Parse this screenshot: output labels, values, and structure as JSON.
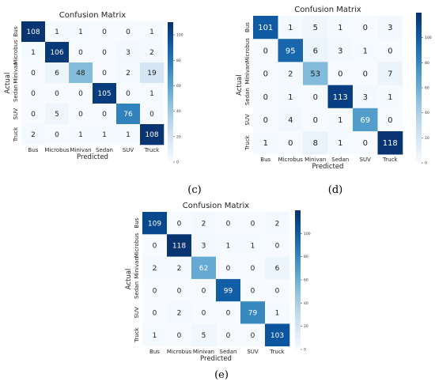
{
  "chart_data": [
    {
      "type": "heatmap",
      "title": "Confusion Matrix",
      "xlabel": "Predicted",
      "ylabel": "Actual",
      "x_categories": [
        "Bus",
        "Microbus",
        "Minivan",
        "Sedan",
        "SUV",
        "Truck"
      ],
      "y_categories": [
        "Bus",
        "Microbus",
        "Minivan",
        "Sedan",
        "SUV",
        "Truck"
      ],
      "values": [
        [
          108,
          1,
          1,
          0,
          0,
          1
        ],
        [
          1,
          106,
          0,
          0,
          3,
          2
        ],
        [
          0,
          6,
          48,
          0,
          2,
          19
        ],
        [
          0,
          0,
          0,
          105,
          0,
          1
        ],
        [
          0,
          5,
          0,
          0,
          76,
          0
        ],
        [
          2,
          0,
          1,
          1,
          1,
          108
        ]
      ],
      "colorbar_ticks": [
        0,
        20,
        40,
        60,
        80,
        100
      ],
      "colorbar_tick_labels": [
        "0",
        "20",
        "40",
        "60",
        "80",
        "100"
      ],
      "color_range": [
        0,
        110
      ],
      "colormap": "Blues",
      "panel_label": "(c)"
    },
    {
      "type": "heatmap",
      "title": "Confusion Matrix",
      "xlabel": "Predicted",
      "ylabel": "Actual",
      "x_categories": [
        "Bus",
        "Microbus",
        "Minivan",
        "Sedan",
        "SUV",
        "Truck"
      ],
      "y_categories": [
        "Bus",
        "Microbus",
        "Minivan",
        "Sedan",
        "SUV",
        "Truck"
      ],
      "values": [
        [
          101,
          1,
          5,
          1,
          0,
          3
        ],
        [
          0,
          95,
          6,
          3,
          1,
          0
        ],
        [
          0,
          2,
          53,
          0,
          0,
          7
        ],
        [
          0,
          1,
          0,
          113,
          3,
          1
        ],
        [
          0,
          4,
          0,
          1,
          69,
          0
        ],
        [
          1,
          0,
          8,
          1,
          0,
          118
        ]
      ],
      "colorbar_ticks": [
        0,
        20,
        40,
        60,
        80,
        100
      ],
      "colorbar_tick_labels": [
        "0",
        "20",
        "40",
        "60",
        "80",
        "100"
      ],
      "color_range": [
        0,
        120
      ],
      "colormap": "Blues",
      "panel_label": "(d)"
    },
    {
      "type": "heatmap",
      "title": "Confusion Matrix",
      "xlabel": "Predicted",
      "ylabel": "Actual",
      "x_categories": [
        "Bus",
        "Microbus",
        "Minivan",
        "Sedan",
        "SUV",
        "Truck"
      ],
      "y_categories": [
        "Bus",
        "Microbus",
        "Minivan",
        "Sedan",
        "SUV",
        "Truck"
      ],
      "values": [
        [
          109,
          0,
          2,
          0,
          0,
          2
        ],
        [
          0,
          118,
          3,
          1,
          1,
          0
        ],
        [
          2,
          2,
          62,
          0,
          0,
          6
        ],
        [
          0,
          0,
          0,
          99,
          0,
          0
        ],
        [
          0,
          2,
          0,
          0,
          79,
          1
        ],
        [
          1,
          0,
          5,
          0,
          0,
          103
        ]
      ],
      "colorbar_ticks": [
        0,
        20,
        40,
        60,
        80,
        100
      ],
      "colorbar_tick_labels": [
        "0",
        "20",
        "40",
        "60",
        "80",
        "100"
      ],
      "color_range": [
        0,
        120
      ],
      "colormap": "Blues",
      "panel_label": "(e)"
    }
  ]
}
